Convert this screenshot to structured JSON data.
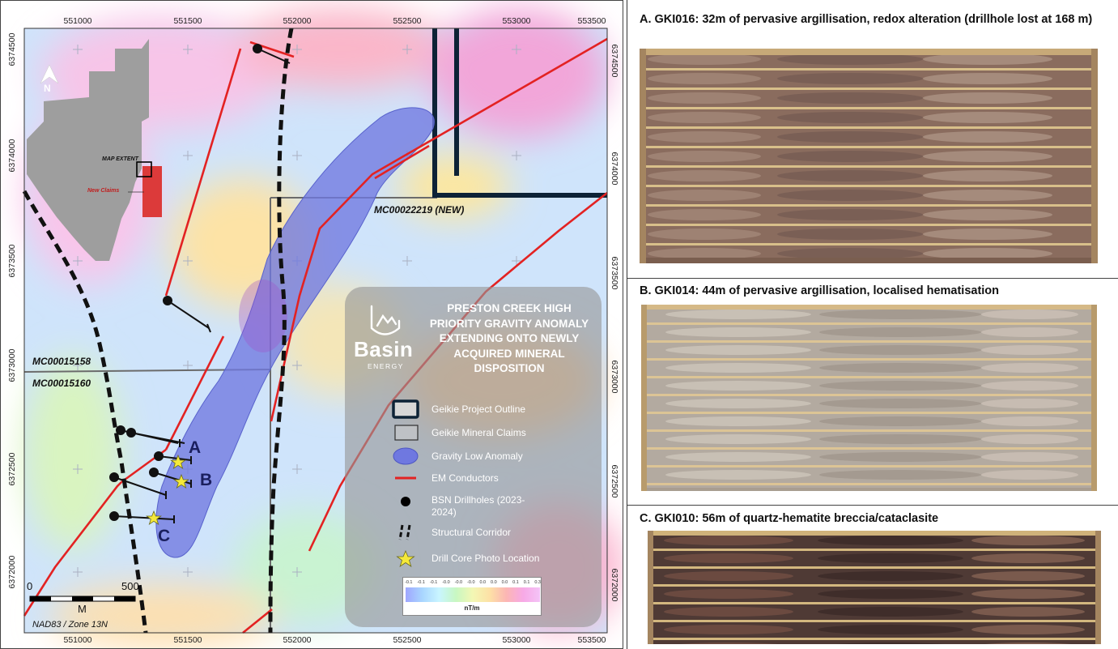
{
  "map": {
    "top_ticks": [
      "551000",
      "551500",
      "552000",
      "552500",
      "553000",
      "553500"
    ],
    "bottom_ticks": [
      "551000",
      "551500",
      "552000",
      "552500",
      "553000",
      "553500"
    ],
    "left_ticks": [
      "6374500",
      "6374000",
      "6373500",
      "6373000",
      "6372500",
      "6372000"
    ],
    "right_ticks": [
      "6374500",
      "6374000",
      "6373500",
      "6373000",
      "6372500",
      "6372000"
    ],
    "claims": {
      "new_claim": "MC00022219 (NEW)",
      "claim_north": "MC00015158",
      "claim_south": "MC00015160"
    },
    "drill_labels": {
      "a": "A",
      "b": "B",
      "c": "C"
    },
    "inset": {
      "north": "N",
      "map_extent": "MAP EXTENT",
      "new_claims": "New Claims"
    },
    "scale": {
      "start": "0",
      "end": "500",
      "unit": "M"
    },
    "crs": "NAD83 / Zone 13N",
    "colors": {
      "gravity_anomaly": "#6f78e0",
      "em_conductor": "#e32222",
      "project_outline": "#0d2236",
      "star": "#f5e93a"
    }
  },
  "legend": {
    "title": "PRESTON CREEK HIGH PRIORITY GRAVITY ANOMALY EXTENDING ONTO NEWLY ACQUIRED MINERAL DISPOSITION",
    "brand": {
      "name": "Basin",
      "sub": "ENERGY"
    },
    "items": [
      {
        "icon": "project-outline-icon",
        "label": "Geikie Project Outline"
      },
      {
        "icon": "mineral-claims-icon",
        "label": "Geikie Mineral Claims"
      },
      {
        "icon": "gravity-anomaly-icon",
        "label": "Gravity Low Anomaly"
      },
      {
        "icon": "em-conductor-icon",
        "label": "EM Conductors"
      },
      {
        "icon": "drillhole-icon",
        "label": "BSN Drillholes (2023-2024)"
      },
      {
        "icon": "structural-corridor-icon",
        "label": "Structural Corridor"
      },
      {
        "icon": "star-icon",
        "label": "Drill Core Photo Location"
      }
    ],
    "colorbar": {
      "ticks": [
        "-0.1",
        "-0.1",
        "-0.1",
        "-0.0",
        "-0.0",
        "-0.0",
        "0.0",
        "0.0",
        "0.0",
        "0.1",
        "0.1",
        "0.3"
      ],
      "unit": "nT/m"
    }
  },
  "photos": [
    {
      "caption": "A. GKI016: 32m of pervasive argillisation, redox alteration (drillhole lost at 168 m)"
    },
    {
      "caption": "B. GKI014: 44m of pervasive argillisation, localised hematisation"
    },
    {
      "caption": "C. GKI010: 56m of quartz-hematite breccia/cataclasite"
    }
  ]
}
